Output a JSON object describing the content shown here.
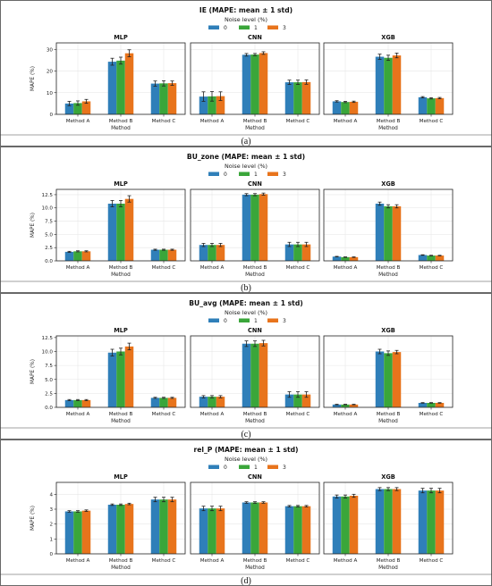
{
  "colors": {
    "0": "#2f7fb9",
    "1": "#3aa63a",
    "3": "#e8741c",
    "grid": "#e6e6e6",
    "frame": "#222222",
    "error": "#222222"
  },
  "legend": {
    "title": "Noise level (%)",
    "items": [
      "0",
      "1",
      "3"
    ]
  },
  "chart_data": [
    {
      "type": "bar",
      "panel_label": "(a)",
      "title": "IE (MAPE: mean ± 1 std)",
      "ylabel": "MAPE (%)",
      "xlabel": "Method",
      "categories": [
        "Method A",
        "Method B",
        "Method C"
      ],
      "subplots": [
        {
          "title": "MLP",
          "ylim": [
            0,
            33
          ],
          "yticks": [
            "0",
            "10",
            "20",
            "30"
          ],
          "ytick_values": [
            0,
            10,
            20,
            30
          ],
          "series": [
            {
              "name": "0",
              "values": [
                5.0,
                24.3,
                14.2
              ],
              "err": [
                1.0,
                1.6,
                1.2
              ]
            },
            {
              "name": "1",
              "values": [
                5.2,
                24.8,
                14.3
              ],
              "err": [
                1.0,
                1.6,
                1.2
              ]
            },
            {
              "name": "3",
              "values": [
                6.0,
                28.2,
                14.4
              ],
              "err": [
                0.9,
                1.6,
                1.0
              ]
            }
          ]
        },
        {
          "title": "CNN",
          "ylim": [
            0,
            33
          ],
          "yticks": [],
          "ytick_values": [
            0,
            10,
            20,
            30
          ],
          "series": [
            {
              "name": "0",
              "values": [
                8.2,
                27.5,
                14.8
              ],
              "err": [
                2.2,
                0.6,
                1.0
              ]
            },
            {
              "name": "1",
              "values": [
                8.3,
                27.6,
                14.8
              ],
              "err": [
                2.2,
                0.5,
                1.0
              ]
            },
            {
              "name": "3",
              "values": [
                8.4,
                28.3,
                14.9
              ],
              "err": [
                2.0,
                0.6,
                1.0
              ]
            }
          ]
        },
        {
          "title": "XGB",
          "ylim": [
            0,
            33
          ],
          "yticks": [],
          "ytick_values": [
            0,
            10,
            20,
            30
          ],
          "series": [
            {
              "name": "0",
              "values": [
                6.0,
                26.6,
                7.9
              ],
              "err": [
                0.3,
                1.2,
                0.3
              ]
            },
            {
              "name": "1",
              "values": [
                5.7,
                26.1,
                7.4
              ],
              "err": [
                0.3,
                1.2,
                0.3
              ]
            },
            {
              "name": "3",
              "values": [
                5.8,
                27.2,
                7.5
              ],
              "err": [
                0.3,
                1.1,
                0.3
              ]
            }
          ]
        }
      ]
    },
    {
      "type": "bar",
      "panel_label": "(b)",
      "title": "BU_zone (MAPE: mean ± 1 std)",
      "ylabel": "MAPE (%)",
      "xlabel": "Method",
      "categories": [
        "Method A",
        "Method B",
        "Method C"
      ],
      "subplots": [
        {
          "title": "MLP",
          "ylim": [
            0,
            13.5
          ],
          "yticks": [
            "0.0",
            "2.5",
            "5.0",
            "7.5",
            "10.0",
            "12.5"
          ],
          "ytick_values": [
            0,
            2.5,
            5,
            7.5,
            10,
            12.5
          ],
          "series": [
            {
              "name": "0",
              "values": [
                1.7,
                10.8,
                2.1
              ],
              "err": [
                0.1,
                0.6,
                0.1
              ]
            },
            {
              "name": "1",
              "values": [
                1.8,
                10.8,
                2.1
              ],
              "err": [
                0.1,
                0.6,
                0.1
              ]
            },
            {
              "name": "3",
              "values": [
                1.8,
                11.7,
                2.1
              ],
              "err": [
                0.1,
                0.6,
                0.1
              ]
            }
          ]
        },
        {
          "title": "CNN",
          "ylim": [
            0,
            13.5
          ],
          "yticks": [],
          "ytick_values": [
            0,
            2.5,
            5,
            7.5,
            10,
            12.5
          ],
          "series": [
            {
              "name": "0",
              "values": [
                3.0,
                12.5,
                3.1
              ],
              "err": [
                0.3,
                0.2,
                0.4
              ]
            },
            {
              "name": "1",
              "values": [
                3.0,
                12.5,
                3.1
              ],
              "err": [
                0.3,
                0.2,
                0.4
              ]
            },
            {
              "name": "3",
              "values": [
                3.0,
                12.6,
                3.1
              ],
              "err": [
                0.3,
                0.2,
                0.4
              ]
            }
          ]
        },
        {
          "title": "XGB",
          "ylim": [
            0,
            13.5
          ],
          "yticks": [],
          "ytick_values": [
            0,
            2.5,
            5,
            7.5,
            10,
            12.5
          ],
          "series": [
            {
              "name": "0",
              "values": [
                0.8,
                10.8,
                1.1
              ],
              "err": [
                0.05,
                0.3,
                0.05
              ]
            },
            {
              "name": "1",
              "values": [
                0.7,
                10.3,
                1.0
              ],
              "err": [
                0.05,
                0.3,
                0.05
              ]
            },
            {
              "name": "3",
              "values": [
                0.7,
                10.3,
                1.0
              ],
              "err": [
                0.05,
                0.3,
                0.05
              ]
            }
          ]
        }
      ]
    },
    {
      "type": "bar",
      "panel_label": "(c)",
      "title": "BU_avg (MAPE: mean ± 1 std)",
      "ylabel": "MAPE (%)",
      "xlabel": "Method",
      "categories": [
        "Method A",
        "Method B",
        "Method C"
      ],
      "subplots": [
        {
          "title": "MLP",
          "ylim": [
            0,
            12.8
          ],
          "yticks": [
            "0.0",
            "2.5",
            "5.0",
            "7.5",
            "10.0",
            "12.5"
          ],
          "ytick_values": [
            0,
            2.5,
            5,
            7.5,
            10,
            12.5
          ],
          "series": [
            {
              "name": "0",
              "values": [
                1.3,
                9.8,
                1.7
              ],
              "err": [
                0.1,
                0.6,
                0.1
              ]
            },
            {
              "name": "1",
              "values": [
                1.3,
                10.0,
                1.7
              ],
              "err": [
                0.1,
                0.6,
                0.1
              ]
            },
            {
              "name": "3",
              "values": [
                1.3,
                10.9,
                1.7
              ],
              "err": [
                0.1,
                0.6,
                0.1
              ]
            }
          ]
        },
        {
          "title": "CNN",
          "ylim": [
            0,
            12.8
          ],
          "yticks": [],
          "ytick_values": [
            0,
            2.5,
            5,
            7.5,
            10,
            12.5
          ],
          "series": [
            {
              "name": "0",
              "values": [
                1.9,
                11.4,
                2.3
              ],
              "err": [
                0.2,
                0.5,
                0.5
              ]
            },
            {
              "name": "1",
              "values": [
                1.9,
                11.4,
                2.3
              ],
              "err": [
                0.2,
                0.5,
                0.5
              ]
            },
            {
              "name": "3",
              "values": [
                1.9,
                11.5,
                2.3
              ],
              "err": [
                0.2,
                0.5,
                0.5
              ]
            }
          ]
        },
        {
          "title": "XGB",
          "ylim": [
            0,
            12.8
          ],
          "yticks": [],
          "ytick_values": [
            0,
            2.5,
            5,
            7.5,
            10,
            12.5
          ],
          "series": [
            {
              "name": "0",
              "values": [
                0.5,
                10.0,
                0.8
              ],
              "err": [
                0.05,
                0.4,
                0.05
              ]
            },
            {
              "name": "1",
              "values": [
                0.5,
                9.7,
                0.8
              ],
              "err": [
                0.05,
                0.4,
                0.05
              ]
            },
            {
              "name": "3",
              "values": [
                0.5,
                9.9,
                0.8
              ],
              "err": [
                0.05,
                0.3,
                0.05
              ]
            }
          ]
        }
      ]
    },
    {
      "type": "bar",
      "panel_label": "(d)",
      "title": "rel_P (MAPE: mean ± 1 std)",
      "ylabel": "MAPE (%)",
      "xlabel": "Method",
      "categories": [
        "Method A",
        "Method B",
        "Method C"
      ],
      "subplots": [
        {
          "title": "MLP",
          "ylim": [
            0,
            4.8
          ],
          "yticks": [
            "0",
            "1",
            "2",
            "3",
            "4"
          ],
          "ytick_values": [
            0,
            1,
            2,
            3,
            4
          ],
          "series": [
            {
              "name": "0",
              "values": [
                2.85,
                3.3,
                3.65
              ],
              "err": [
                0.05,
                0.05,
                0.15
              ]
            },
            {
              "name": "1",
              "values": [
                2.85,
                3.3,
                3.65
              ],
              "err": [
                0.05,
                0.05,
                0.15
              ]
            },
            {
              "name": "3",
              "values": [
                2.9,
                3.35,
                3.65
              ],
              "err": [
                0.05,
                0.05,
                0.15
              ]
            }
          ]
        },
        {
          "title": "CNN",
          "ylim": [
            0,
            4.8
          ],
          "yticks": [],
          "ytick_values": [
            0,
            1,
            2,
            3,
            4
          ],
          "series": [
            {
              "name": "0",
              "values": [
                3.05,
                3.45,
                3.2
              ],
              "err": [
                0.15,
                0.05,
                0.05
              ]
            },
            {
              "name": "1",
              "values": [
                3.05,
                3.45,
                3.2
              ],
              "err": [
                0.15,
                0.05,
                0.05
              ]
            },
            {
              "name": "3",
              "values": [
                3.05,
                3.45,
                3.2
              ],
              "err": [
                0.15,
                0.05,
                0.05
              ]
            }
          ]
        },
        {
          "title": "XGB",
          "ylim": [
            0,
            4.8
          ],
          "yticks": [],
          "ytick_values": [
            0,
            1,
            2,
            3,
            4
          ],
          "series": [
            {
              "name": "0",
              "values": [
                3.85,
                4.35,
                4.25
              ],
              "err": [
                0.1,
                0.1,
                0.15
              ]
            },
            {
              "name": "1",
              "values": [
                3.85,
                4.35,
                4.25
              ],
              "err": [
                0.1,
                0.1,
                0.15
              ]
            },
            {
              "name": "3",
              "values": [
                3.9,
                4.35,
                4.25
              ],
              "err": [
                0.1,
                0.1,
                0.15
              ]
            }
          ]
        }
      ]
    }
  ]
}
